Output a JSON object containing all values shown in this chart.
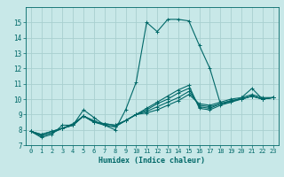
{
  "title": "",
  "xlabel": "Humidex (Indice chaleur)",
  "background_color": "#c8e8e8",
  "grid_color": "#a8d0d0",
  "line_color": "#006868",
  "xlim": [
    -0.5,
    23.5
  ],
  "ylim": [
    7,
    16
  ],
  "yticks": [
    7,
    8,
    9,
    10,
    11,
    12,
    13,
    14,
    15
  ],
  "xticks": [
    0,
    1,
    2,
    3,
    4,
    5,
    6,
    7,
    8,
    9,
    10,
    11,
    12,
    13,
    14,
    15,
    16,
    17,
    18,
    19,
    20,
    21,
    22,
    23
  ],
  "series": [
    [
      7.9,
      7.5,
      7.7,
      8.3,
      8.3,
      9.3,
      8.8,
      8.3,
      8.0,
      9.3,
      11.1,
      15.0,
      14.4,
      15.2,
      15.2,
      15.1,
      13.5,
      12.0,
      9.7,
      9.8,
      10.1,
      10.7,
      10.0,
      10.1
    ],
    [
      7.9,
      7.6,
      7.8,
      8.1,
      8.3,
      8.9,
      8.6,
      8.3,
      8.2,
      8.6,
      9.0,
      9.4,
      9.8,
      10.2,
      10.6,
      10.9,
      9.4,
      9.3,
      9.6,
      9.8,
      10.0,
      10.2,
      10.0,
      10.1
    ],
    [
      7.9,
      7.6,
      7.8,
      8.1,
      8.3,
      8.9,
      8.5,
      8.3,
      8.2,
      8.6,
      9.0,
      9.3,
      9.7,
      10.0,
      10.4,
      10.7,
      9.5,
      9.4,
      9.7,
      9.9,
      10.0,
      10.2,
      10.0,
      10.1
    ],
    [
      7.9,
      7.7,
      7.9,
      8.1,
      8.3,
      8.9,
      8.5,
      8.4,
      8.3,
      8.6,
      9.0,
      9.2,
      9.5,
      9.8,
      10.1,
      10.5,
      9.6,
      9.5,
      9.7,
      9.9,
      10.0,
      10.2,
      10.0,
      10.1
    ],
    [
      7.9,
      7.7,
      7.9,
      8.1,
      8.4,
      8.9,
      8.5,
      8.4,
      8.3,
      8.6,
      9.0,
      9.1,
      9.3,
      9.6,
      9.9,
      10.3,
      9.7,
      9.6,
      9.8,
      10.0,
      10.1,
      10.3,
      10.1,
      10.1
    ]
  ]
}
